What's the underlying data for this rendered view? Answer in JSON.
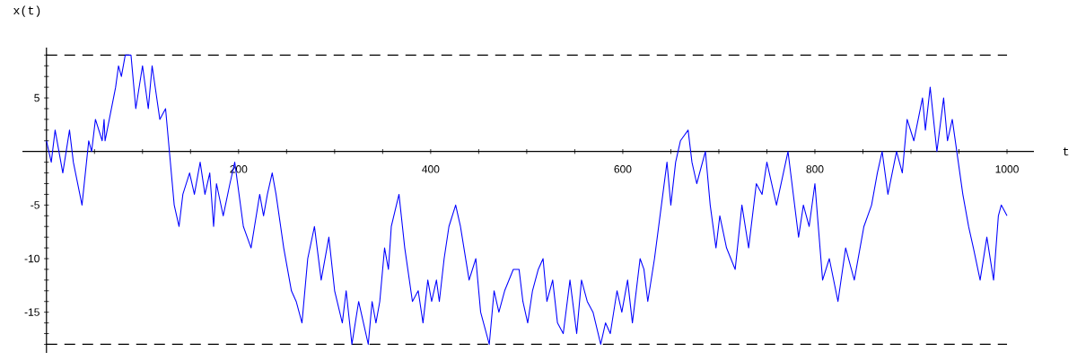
{
  "chart_data": {
    "type": "line",
    "xlabel": "t",
    "ylabel": "x(t)",
    "color": "#0000ff",
    "x": [
      0,
      5,
      9,
      17,
      24,
      28,
      37,
      44,
      47,
      51,
      58,
      60,
      61,
      72,
      75,
      78,
      82,
      88,
      93,
      100,
      106,
      110,
      118,
      124,
      128,
      133,
      138,
      142,
      149,
      154,
      160,
      165,
      170,
      174,
      177,
      184,
      191,
      196,
      205,
      213,
      222,
      226,
      230,
      235,
      239,
      247,
      255,
      260,
      266,
      272,
      279,
      286,
      294,
      300,
      308,
      312,
      318,
      325,
      335,
      339,
      343,
      347,
      352,
      356,
      359,
      367,
      373,
      381,
      387,
      392,
      397,
      401,
      406,
      409,
      414,
      419,
      426,
      431,
      440,
      447,
      452,
      461,
      466,
      471,
      477,
      486,
      492,
      496,
      501,
      506,
      512,
      517,
      521,
      527,
      532,
      538,
      545,
      552,
      557,
      563,
      569,
      577,
      582,
      587,
      594,
      599,
      605,
      610,
      618,
      622,
      626,
      633,
      646,
      650,
      655,
      660,
      668,
      672,
      677,
      686,
      691,
      697,
      701,
      708,
      717,
      724,
      731,
      739,
      745,
      750,
      760,
      772,
      783,
      788,
      794,
      800,
      808,
      815,
      824,
      832,
      841,
      851,
      859,
      865,
      870,
      876,
      885,
      891,
      896,
      903,
      912,
      915,
      920,
      927,
      934,
      938,
      943,
      954,
      960,
      965,
      972,
      979,
      986,
      991,
      994,
      1000
    ],
    "values": [
      1,
      -1,
      2,
      -2,
      2,
      -1,
      -5,
      1,
      0,
      3,
      1,
      3,
      1,
      6,
      8,
      7,
      9,
      9,
      4,
      8,
      4,
      8,
      3,
      4,
      0,
      -5,
      -7,
      -4,
      -2,
      -4,
      -1,
      -4,
      -2,
      -7,
      -3,
      -6,
      -3,
      -1,
      -7,
      -9,
      -4,
      -6,
      -4,
      -2,
      -4,
      -9,
      -13,
      -14,
      -16,
      -10,
      -7,
      -12,
      -8,
      -13,
      -16,
      -13,
      -18,
      -14,
      -18,
      -14,
      -16,
      -14,
      -9,
      -11,
      -7,
      -4,
      -9,
      -14,
      -13,
      -16,
      -12,
      -14,
      -12,
      -14,
      -10,
      -7,
      -5,
      -7,
      -12,
      -10,
      -15,
      -18,
      -13,
      -15,
      -13,
      -11,
      -11,
      -14,
      -16,
      -13,
      -11,
      -10,
      -14,
      -12,
      -16,
      -17,
      -12,
      -17,
      -12,
      -14,
      -15,
      -18,
      -16,
      -17,
      -13,
      -15,
      -12,
      -16,
      -10,
      -11,
      -14,
      -10,
      -1,
      -5,
      -1,
      1,
      2,
      -1,
      -3,
      0,
      -5,
      -9,
      -6,
      -9,
      -11,
      -5,
      -9,
      -3,
      -4,
      -1,
      -5,
      0,
      -8,
      -5,
      -7,
      -3,
      -12,
      -10,
      -14,
      -9,
      -12,
      -7,
      -5,
      -2,
      0,
      -4,
      0,
      -2,
      3,
      1,
      5,
      2,
      6,
      0,
      5,
      1,
      3,
      -4,
      -7,
      -9,
      -12,
      -8,
      -12,
      -6,
      -5,
      -6
    ],
    "xlim": [
      -25,
      1028
    ],
    "ylim": [
      -18.8,
      9.7
    ],
    "xticks": [
      {
        "value": 50,
        "label": null
      },
      {
        "value": 100,
        "label": null
      },
      {
        "value": 150,
        "label": null
      },
      200,
      {
        "value": 250,
        "label": null
      },
      {
        "value": 300,
        "label": null
      },
      {
        "value": 350,
        "label": null
      },
      400,
      {
        "value": 450,
        "label": null
      },
      {
        "value": 500,
        "label": null
      },
      {
        "value": 550,
        "label": null
      },
      600,
      {
        "value": 650,
        "label": null
      },
      {
        "value": 700,
        "label": null
      },
      {
        "value": 750,
        "label": null
      },
      800,
      {
        "value": 850,
        "label": null
      },
      {
        "value": 900,
        "label": null
      },
      {
        "value": 950,
        "label": null
      },
      1000
    ],
    "yticks": [
      {
        "value": -18,
        "label": null
      },
      {
        "value": -17,
        "label": null
      },
      {
        "value": -16,
        "label": null
      },
      -15,
      {
        "value": -14,
        "label": null
      },
      {
        "value": -13,
        "label": null
      },
      {
        "value": -12,
        "label": null
      },
      {
        "value": -11,
        "label": null
      },
      -10,
      {
        "value": -9,
        "label": null
      },
      {
        "value": -8,
        "label": null
      },
      {
        "value": -7,
        "label": null
      },
      {
        "value": -6,
        "label": null
      },
      -5,
      {
        "value": -4,
        "label": null
      },
      {
        "value": -3,
        "label": null
      },
      {
        "value": -2,
        "label": null
      },
      {
        "value": -1,
        "label": null
      },
      {
        "value": 1,
        "label": null
      },
      {
        "value": 2,
        "label": null
      },
      {
        "value": 3,
        "label": null
      },
      {
        "value": 4,
        "label": null
      },
      5,
      {
        "value": 6,
        "label": null
      },
      {
        "value": 7,
        "label": null
      },
      {
        "value": 8,
        "label": null
      },
      {
        "value": 9,
        "label": null
      }
    ],
    "ref_lines": [
      {
        "axis": "y",
        "value": 9,
        "color": "#000000",
        "line_style": "dashed"
      },
      {
        "axis": "y",
        "value": -18,
        "color": "#000000",
        "line_style": "dashed"
      }
    ]
  }
}
